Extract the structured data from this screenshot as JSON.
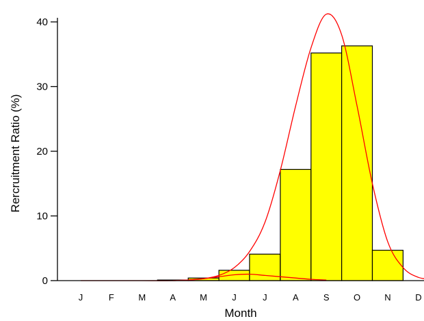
{
  "chart_data": {
    "type": "bar",
    "categories": [
      "J",
      "F",
      "M",
      "A",
      "M",
      "J",
      "J",
      "A",
      "S",
      "O",
      "N",
      "D"
    ],
    "values": [
      0,
      0,
      0,
      0.1,
      0.4,
      1.6,
      4.1,
      17.2,
      35.2,
      36.3,
      4.7,
      0
    ],
    "xlabel": "Month",
    "ylabel": "Rercruitment Ratio (%)",
    "ylim": [
      0,
      40
    ],
    "yticks": [
      0,
      10,
      20,
      30,
      40
    ],
    "grid": false,
    "legend": "none",
    "fitted_curves": [
      {
        "x": [
          1,
          2,
          3,
          4,
          4.5,
          5,
          5.5,
          6,
          6.5,
          7,
          7.5,
          8,
          8.5,
          9,
          9.5,
          10,
          10.5,
          11,
          11.5,
          12,
          12.5
        ],
        "y": [
          0,
          0,
          0,
          0,
          0.1,
          0.3,
          0.8,
          2.0,
          4.5,
          9.0,
          17.0,
          27.0,
          36.0,
          41.2,
          38.0,
          27.0,
          15.0,
          6.0,
          2.0,
          0.5,
          0.2
        ]
      },
      {
        "x": [
          4,
          4.5,
          5,
          5.5,
          6,
          6.5,
          7,
          7.5,
          8,
          8.5,
          9
        ],
        "y": [
          0,
          0.1,
          0.3,
          0.6,
          0.9,
          1.0,
          0.8,
          0.6,
          0.4,
          0.2,
          0.1
        ]
      }
    ],
    "colors": {
      "bar_fill": "#ffff00",
      "bar_stroke": "#000000",
      "curve": "#ff0000",
      "axis": "#000000"
    }
  }
}
